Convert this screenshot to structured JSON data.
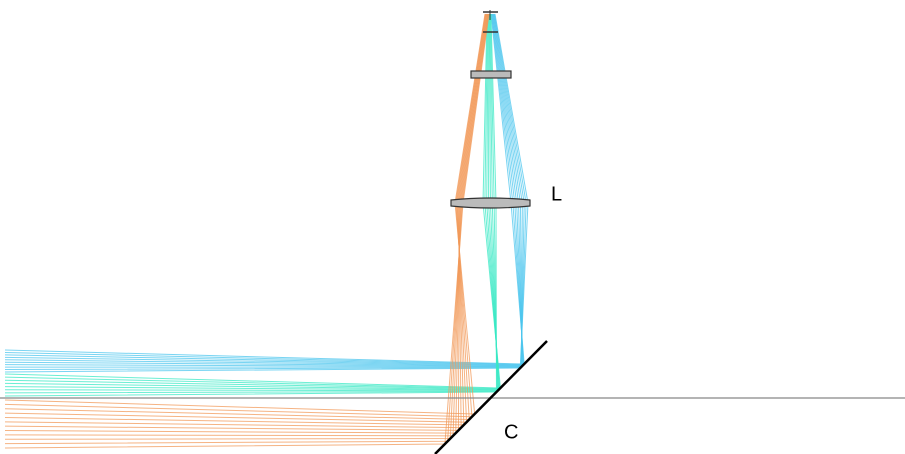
{
  "labels": {
    "lens": "L",
    "mirror": "C"
  }
}
